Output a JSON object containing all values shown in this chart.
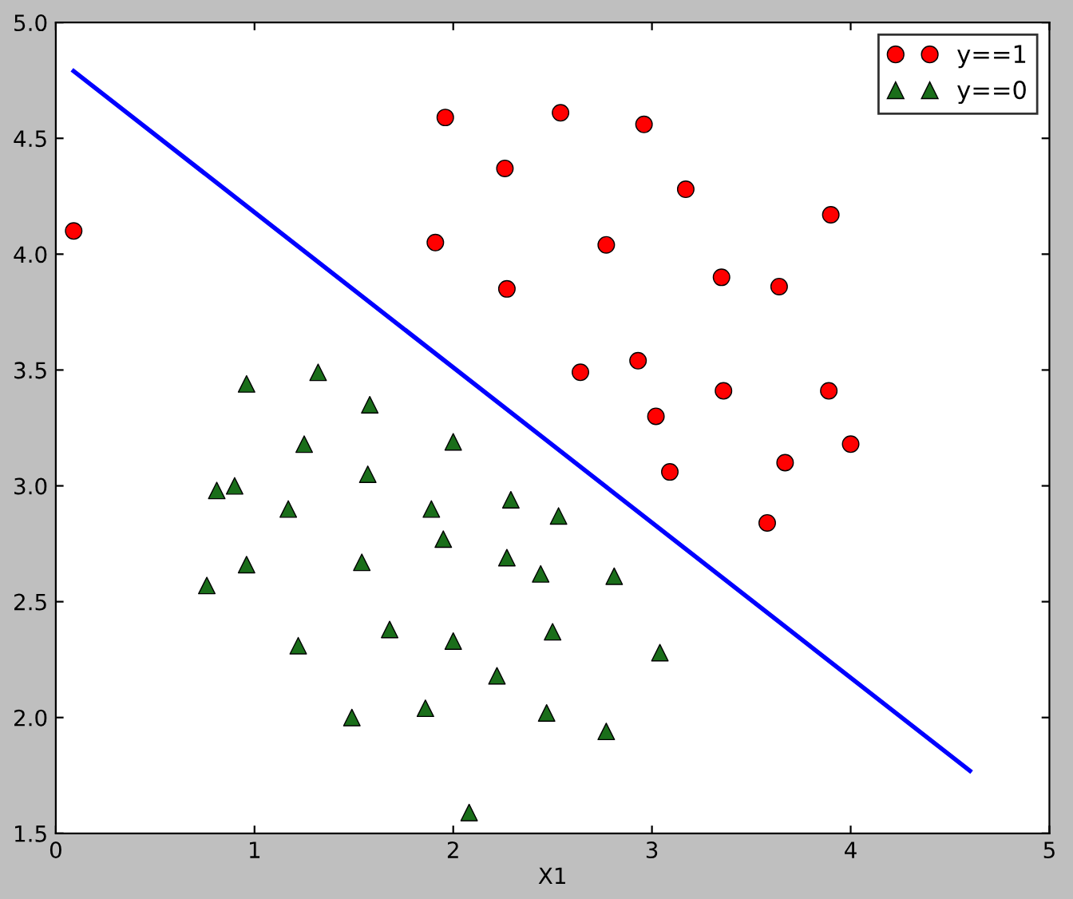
{
  "chart_data": {
    "type": "scatter",
    "xlabel": "X1",
    "xlim": [
      0,
      5
    ],
    "xticks": [
      0,
      1,
      2,
      3,
      4,
      5
    ],
    "ylim": [
      1.5,
      5.0
    ],
    "yticks": [
      1.5,
      {
        "value": 2,
        "label": "2.0"
      },
      2.5,
      {
        "value": 3,
        "label": "3.0"
      },
      3.5,
      {
        "value": 4,
        "label": "4.0"
      },
      4.5,
      {
        "value": 5,
        "label": "5.0"
      }
    ],
    "grid": false,
    "legend": "top right",
    "series": [
      {
        "name": "y==1",
        "marker": "circle",
        "color": "#ff0000",
        "x": [
          0.09,
          1.96,
          2.54,
          2.96,
          2.26,
          3.17,
          3.9,
          1.91,
          2.77,
          2.27,
          3.35,
          3.64,
          2.64,
          2.93,
          3.36,
          3.89,
          3.02,
          3.09,
          4.0,
          3.67,
          3.58
        ],
        "values": [
          4.1,
          4.59,
          4.61,
          4.56,
          4.37,
          4.28,
          4.17,
          4.05,
          4.04,
          3.85,
          3.9,
          3.86,
          3.49,
          3.54,
          3.41,
          3.41,
          3.3,
          3.06,
          3.18,
          3.1,
          2.84
        ]
      },
      {
        "name": "y==0",
        "marker": "triangle",
        "color": "#1a6e1a",
        "x": [
          0.76,
          0.81,
          0.9,
          0.96,
          0.96,
          1.17,
          1.25,
          1.22,
          1.32,
          1.57,
          1.58,
          1.54,
          1.49,
          1.68,
          1.89,
          1.95,
          2.0,
          2.0,
          1.86,
          2.08,
          2.29,
          2.27,
          2.22,
          2.44,
          2.53,
          2.5,
          2.47,
          2.81,
          2.77,
          3.04
        ],
        "values": [
          2.57,
          2.98,
          3.0,
          3.44,
          2.66,
          2.9,
          3.18,
          2.31,
          3.49,
          3.05,
          3.35,
          2.67,
          2.0,
          2.38,
          2.9,
          2.77,
          3.19,
          2.33,
          2.04,
          1.59,
          2.94,
          2.69,
          2.18,
          2.62,
          2.87,
          2.37,
          2.02,
          2.61,
          1.94,
          2.28
        ]
      },
      {
        "type": "line",
        "color": "#0000ff",
        "x": [
          0.09,
          4.6
        ],
        "values": [
          4.79,
          1.77
        ]
      }
    ]
  }
}
